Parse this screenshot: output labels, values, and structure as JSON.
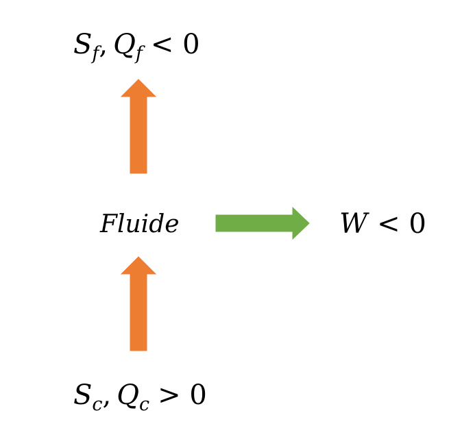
{
  "colors": {
    "heat_arrow": "#ed7d31",
    "work_arrow": "#70ad47",
    "text": "#000000"
  },
  "labels": {
    "fluid": "Fluide",
    "cold_source": {
      "s_symbol": "S",
      "s_sub": "f",
      "sep": ",",
      "q_symbol": "Q",
      "q_sub": "f",
      "relation": "< 0"
    },
    "hot_source": {
      "s_symbol": "S",
      "s_sub": "c",
      "sep": ",",
      "q_symbol": "Q",
      "q_sub": "c",
      "relation": "> 0"
    },
    "work": {
      "w_symbol": "W",
      "relation": "< 0"
    }
  }
}
